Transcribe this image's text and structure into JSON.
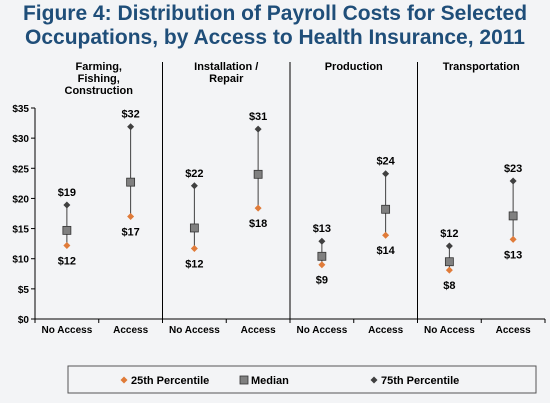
{
  "chart_data": {
    "type": "scatter",
    "title_lines": [
      "Figure 4: Distribution of Payroll Costs for Selected",
      "Occupations, by Access to Health Insurance, 2011"
    ],
    "groups": [
      {
        "lines": [
          "Farming,",
          "Fishing,",
          "Construction"
        ]
      },
      {
        "lines": [
          "Installation /",
          "Repair"
        ]
      },
      {
        "lines": [
          "Production"
        ]
      },
      {
        "lines": [
          "Transportation"
        ]
      }
    ],
    "categories": [
      "No Access",
      "Access",
      "No Access",
      "Access",
      "No Access",
      "Access",
      "No Access",
      "Access"
    ],
    "series": [
      {
        "name": "25th Percentile",
        "color": "#e07b39",
        "marker": "diamond",
        "values": [
          12.2,
          17.0,
          11.7,
          18.4,
          9.0,
          13.9,
          8.1,
          13.2
        ]
      },
      {
        "name": "Median",
        "color": "#808080",
        "marker": "square",
        "values": [
          14.7,
          22.7,
          15.1,
          24.0,
          10.4,
          18.2,
          9.5,
          17.1
        ]
      },
      {
        "name": "75th Percentile",
        "color": "#404040",
        "marker": "diamond",
        "values": [
          18.9,
          31.9,
          22.1,
          31.5,
          12.9,
          24.1,
          12.1,
          22.9
        ]
      }
    ],
    "top_labels": [
      "$19",
      "$32",
      "$22",
      "$31",
      "$13",
      "$24",
      "$12",
      "$23"
    ],
    "bottom_labels": [
      "$12",
      "$17",
      "$12",
      "$18",
      "$9",
      "$14",
      "$8",
      "$13"
    ],
    "yticks": [
      0,
      5,
      10,
      15,
      20,
      25,
      30,
      35
    ],
    "ytick_labels": [
      "$0",
      "$5",
      "$10",
      "$15",
      "$20",
      "$25",
      "$30",
      "$35"
    ],
    "ylim": [
      0,
      35
    ],
    "grid": false,
    "legend_position": "bottom"
  }
}
